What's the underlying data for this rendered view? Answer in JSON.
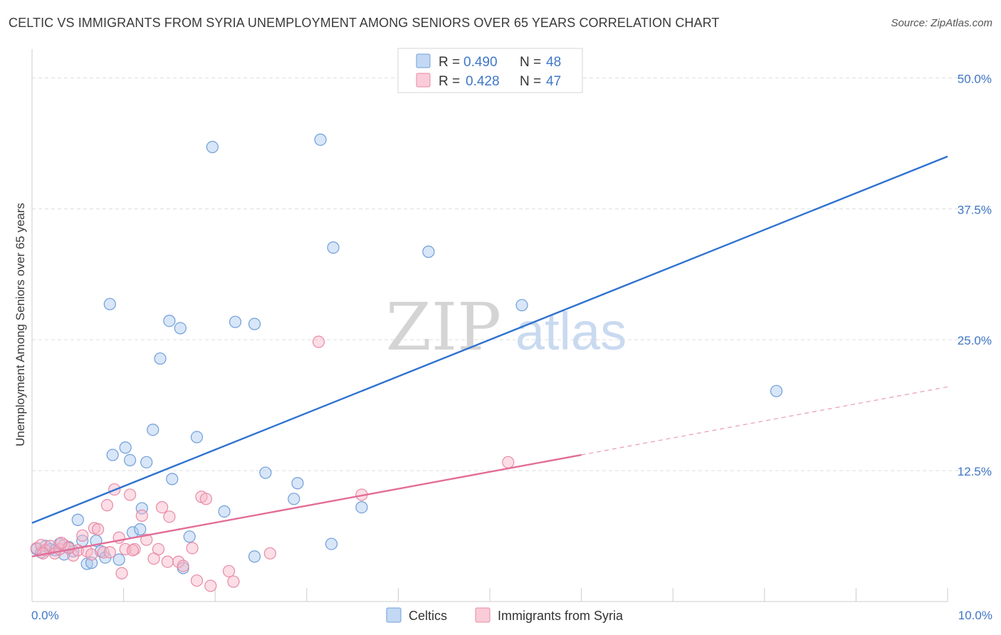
{
  "title": "CELTIC VS IMMIGRANTS FROM SYRIA UNEMPLOYMENT AMONG SENIORS OVER 65 YEARS CORRELATION CHART",
  "source": "Source: ZipAtlas.com",
  "watermark": {
    "zip": "ZIP",
    "atlas": "atlas"
  },
  "chart_data": {
    "type": "scatter",
    "title": "CELTIC VS IMMIGRANTS FROM SYRIA UNEMPLOYMENT AMONG SENIORS OVER 65 YEARS CORRELATION CHART",
    "xlabel": "",
    "ylabel": "Unemployment Among Seniors over 65 years",
    "xlim": [
      0,
      10
    ],
    "ylim": [
      0,
      52
    ],
    "x_tick_labels": {
      "left": "0.0%",
      "right": "10.0%"
    },
    "y_ticks": [
      {
        "value": 12.5,
        "label": "12.5%"
      },
      {
        "value": 25.0,
        "label": "25.0%"
      },
      {
        "value": 37.5,
        "label": "37.5%"
      },
      {
        "value": 50.0,
        "label": "50.0%"
      }
    ],
    "legend": [
      {
        "name": "Celtics",
        "r_label": "R =",
        "r_value": "0.490",
        "n_label": "N =",
        "n_value": "48",
        "color": "#a9c7ef",
        "stroke": "#6f9fd8"
      },
      {
        "name": "Immigrants from Syria",
        "r_label": "R =",
        "r_value": "0.428",
        "n_label": "N =",
        "n_value": "47",
        "color": "#f6b6c8",
        "stroke": "#e88aa6"
      }
    ],
    "series": [
      {
        "name": "Celtics",
        "color": "#a9c7ef",
        "stroke": "#6f9fd8",
        "line_color": "#2f72cf",
        "trend": {
          "x0": 0.0,
          "y0": 7.5,
          "x1": 10.0,
          "y1": 42.5
        },
        "points": [
          {
            "x": 0.05,
            "y": 5.0
          },
          {
            "x": 0.1,
            "y": 4.7
          },
          {
            "x": 0.15,
            "y": 5.3
          },
          {
            "x": 0.2,
            "y": 5.0
          },
          {
            "x": 0.3,
            "y": 5.5
          },
          {
            "x": 0.35,
            "y": 4.5
          },
          {
            "x": 0.45,
            "y": 4.8
          },
          {
            "x": 0.5,
            "y": 7.8
          },
          {
            "x": 0.55,
            "y": 5.8
          },
          {
            "x": 0.6,
            "y": 3.6
          },
          {
            "x": 0.65,
            "y": 3.7
          },
          {
            "x": 0.7,
            "y": 5.8
          },
          {
            "x": 0.75,
            "y": 4.8
          },
          {
            "x": 0.8,
            "y": 4.2
          },
          {
            "x": 0.85,
            "y": 28.4
          },
          {
            "x": 0.88,
            "y": 14.0
          },
          {
            "x": 0.95,
            "y": 4.0
          },
          {
            "x": 1.02,
            "y": 14.7
          },
          {
            "x": 1.07,
            "y": 13.5
          },
          {
            "x": 1.1,
            "y": 6.6
          },
          {
            "x": 1.18,
            "y": 6.9
          },
          {
            "x": 1.2,
            "y": 8.9
          },
          {
            "x": 1.25,
            "y": 13.3
          },
          {
            "x": 1.32,
            "y": 16.4
          },
          {
            "x": 1.4,
            "y": 23.2
          },
          {
            "x": 1.5,
            "y": 26.8
          },
          {
            "x": 1.53,
            "y": 11.7
          },
          {
            "x": 1.62,
            "y": 26.1
          },
          {
            "x": 1.65,
            "y": 3.2
          },
          {
            "x": 1.72,
            "y": 6.2
          },
          {
            "x": 1.8,
            "y": 15.7
          },
          {
            "x": 1.97,
            "y": 43.4
          },
          {
            "x": 2.1,
            "y": 8.6
          },
          {
            "x": 2.22,
            "y": 26.7
          },
          {
            "x": 2.43,
            "y": 26.5
          },
          {
            "x": 2.43,
            "y": 4.3
          },
          {
            "x": 2.55,
            "y": 12.3
          },
          {
            "x": 2.86,
            "y": 9.8
          },
          {
            "x": 2.9,
            "y": 11.3
          },
          {
            "x": 3.15,
            "y": 44.1
          },
          {
            "x": 3.27,
            "y": 5.5
          },
          {
            "x": 3.29,
            "y": 33.8
          },
          {
            "x": 3.6,
            "y": 9.0
          },
          {
            "x": 4.33,
            "y": 33.4
          },
          {
            "x": 5.35,
            "y": 28.3
          },
          {
            "x": 8.13,
            "y": 20.1
          },
          {
            "x": 0.25,
            "y": 4.9
          },
          {
            "x": 0.4,
            "y": 5.2
          }
        ]
      },
      {
        "name": "Immigrants from Syria",
        "color": "#f6b6c8",
        "stroke": "#e88aa6",
        "line_color": "#e36d97",
        "trend": {
          "x0": 0.0,
          "y0": 4.3,
          "x1": 6.0,
          "y1": 14.0
        },
        "trend_extension": {
          "x0": 6.0,
          "y0": 14.0,
          "x1": 10.0,
          "y1": 20.5
        },
        "points": [
          {
            "x": 0.05,
            "y": 5.1
          },
          {
            "x": 0.1,
            "y": 5.4
          },
          {
            "x": 0.15,
            "y": 4.9
          },
          {
            "x": 0.2,
            "y": 5.3
          },
          {
            "x": 0.25,
            "y": 4.6
          },
          {
            "x": 0.3,
            "y": 5.0
          },
          {
            "x": 0.35,
            "y": 5.4
          },
          {
            "x": 0.45,
            "y": 4.4
          },
          {
            "x": 0.5,
            "y": 4.9
          },
          {
            "x": 0.55,
            "y": 6.3
          },
          {
            "x": 0.6,
            "y": 4.8
          },
          {
            "x": 0.68,
            "y": 7.0
          },
          {
            "x": 0.72,
            "y": 6.9
          },
          {
            "x": 0.78,
            "y": 4.7
          },
          {
            "x": 0.82,
            "y": 9.2
          },
          {
            "x": 0.85,
            "y": 4.7
          },
          {
            "x": 0.9,
            "y": 10.7
          },
          {
            "x": 0.95,
            "y": 6.1
          },
          {
            "x": 0.98,
            "y": 2.7
          },
          {
            "x": 1.02,
            "y": 5.0
          },
          {
            "x": 1.07,
            "y": 10.2
          },
          {
            "x": 1.12,
            "y": 5.0
          },
          {
            "x": 1.2,
            "y": 8.2
          },
          {
            "x": 1.25,
            "y": 5.9
          },
          {
            "x": 1.33,
            "y": 4.1
          },
          {
            "x": 1.38,
            "y": 5.0
          },
          {
            "x": 1.42,
            "y": 9.0
          },
          {
            "x": 1.48,
            "y": 3.8
          },
          {
            "x": 1.5,
            "y": 8.1
          },
          {
            "x": 1.6,
            "y": 3.8
          },
          {
            "x": 1.65,
            "y": 3.4
          },
          {
            "x": 1.75,
            "y": 5.1
          },
          {
            "x": 1.8,
            "y": 2.0
          },
          {
            "x": 1.85,
            "y": 10.0
          },
          {
            "x": 1.9,
            "y": 9.8
          },
          {
            "x": 1.95,
            "y": 1.5
          },
          {
            "x": 2.15,
            "y": 2.9
          },
          {
            "x": 2.2,
            "y": 1.9
          },
          {
            "x": 2.6,
            "y": 4.6
          },
          {
            "x": 3.13,
            "y": 24.8
          },
          {
            "x": 3.6,
            "y": 10.2
          },
          {
            "x": 5.2,
            "y": 13.3
          },
          {
            "x": 0.4,
            "y": 5.1
          },
          {
            "x": 0.65,
            "y": 4.5
          },
          {
            "x": 1.1,
            "y": 4.9
          },
          {
            "x": 0.12,
            "y": 4.6
          },
          {
            "x": 0.32,
            "y": 5.6
          }
        ]
      }
    ]
  }
}
